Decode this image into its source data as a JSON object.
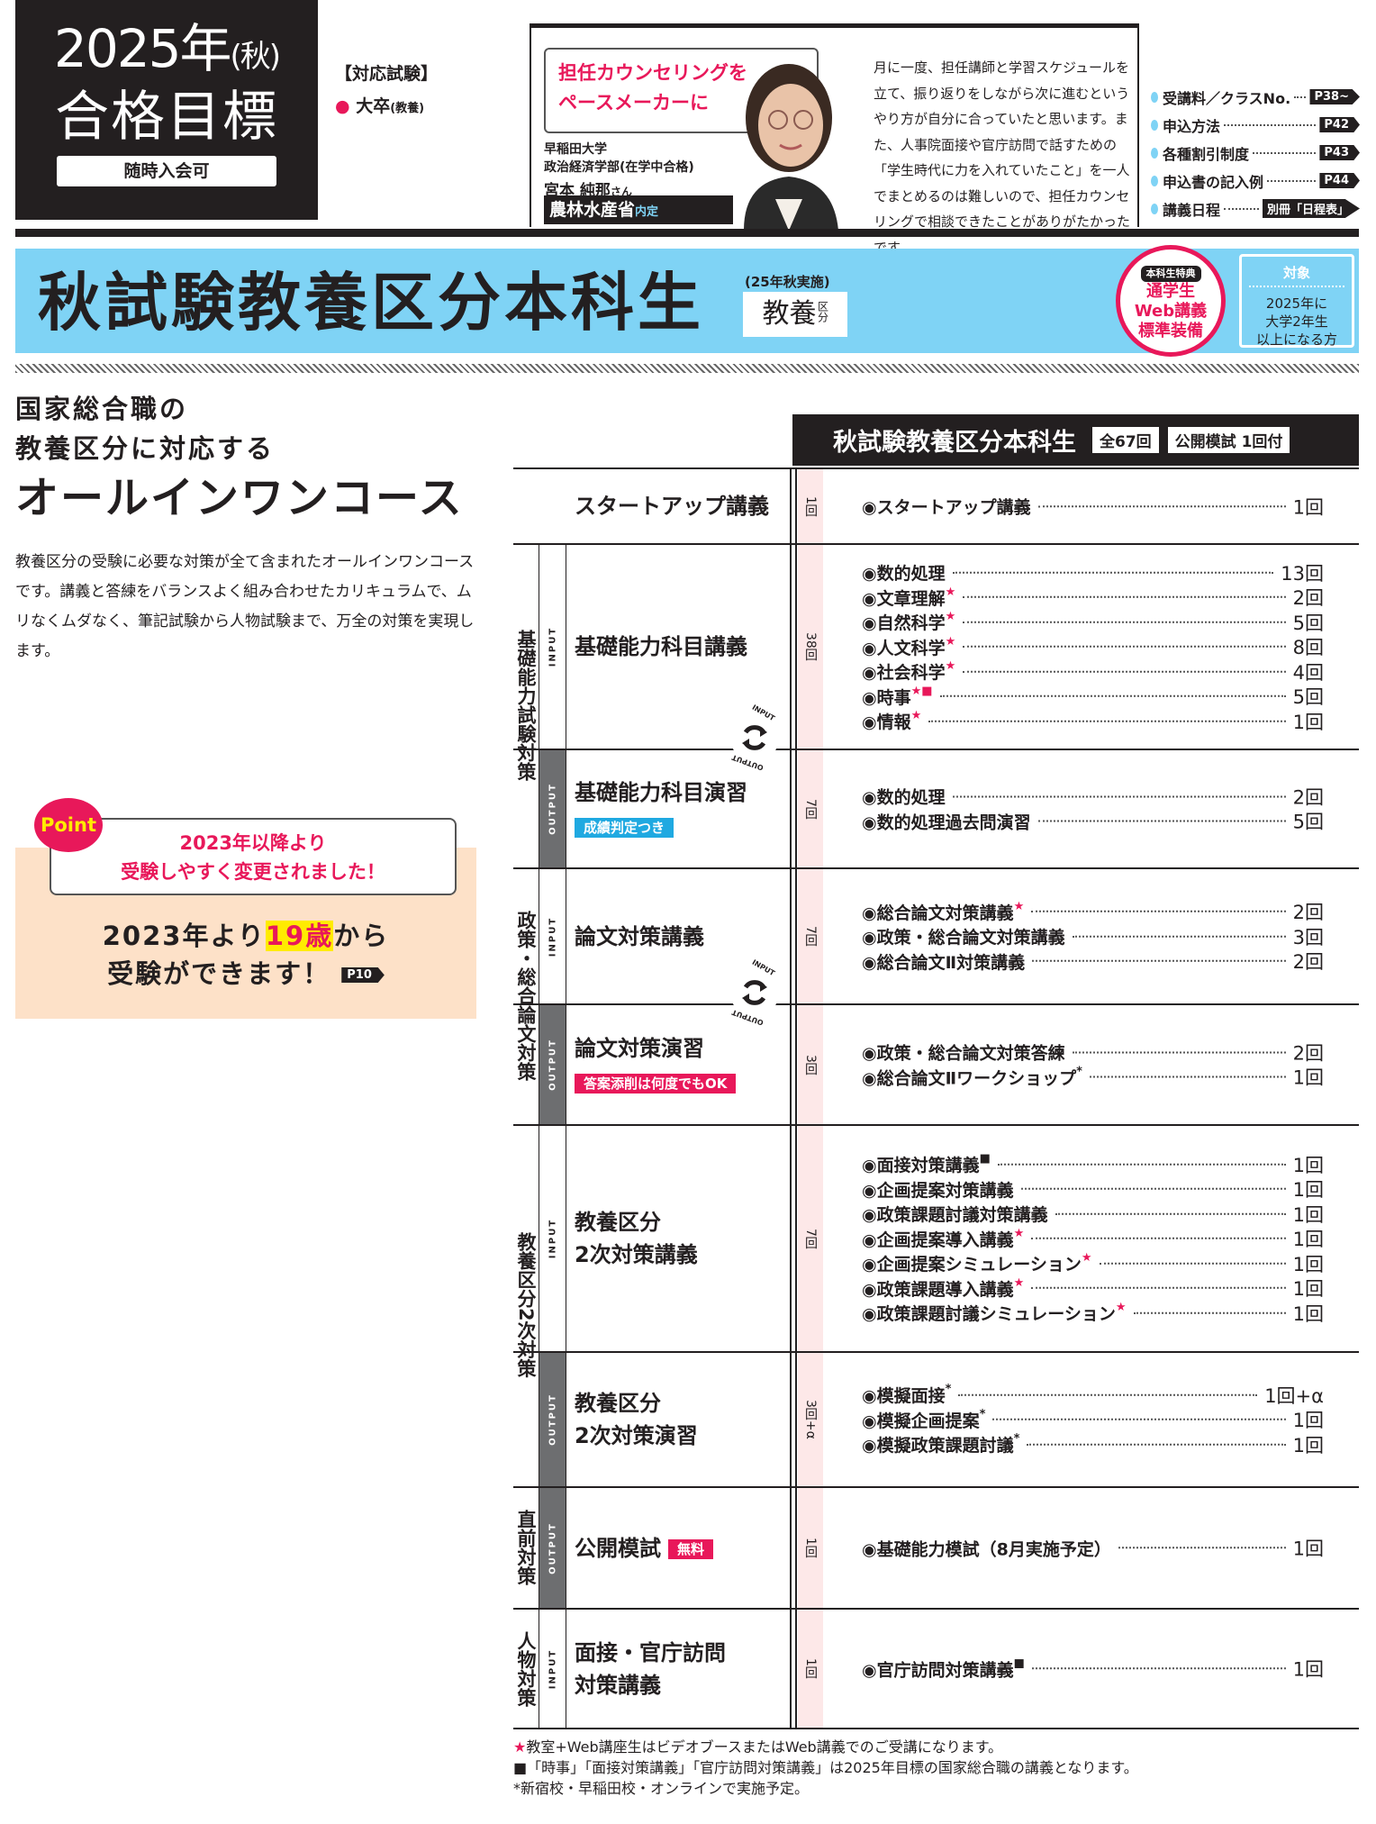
{
  "goal": {
    "year": "2025年",
    "season": "(秋)",
    "label": "合格目標",
    "note": "随時入会可"
  },
  "exam": {
    "heading": "【対応試験】",
    "item": "大卒",
    "item_sub": "(教養)"
  },
  "testimonial": {
    "bubble": [
      "担任カウンセリングを",
      "ペースメーカーに"
    ],
    "school": "早稲田大学",
    "faculty": "政治経済学部(在学中合格)",
    "name": "宮本 純那",
    "honorific": "さん",
    "ministry": "農林水産省",
    "ministry_tag": "内定",
    "text": "月に一度、担任講師と学習スケジュールを立て、振り返りをしながら次に進むというやり方が自分に合っていたと思います。また、人事院面接や官庁訪問で話すための「学生時代に力を入れていたこと」を一人でまとめるのは難しいので、担任カウンセリングで相談できたことがありがたかったです。"
  },
  "links": [
    {
      "label": "受講料／クラスNo.",
      "page": "P38~"
    },
    {
      "label": "申込方法",
      "page": "P42"
    },
    {
      "label": "各種割引制度",
      "page": "P43"
    },
    {
      "label": "申込書の記入例",
      "page": "P44"
    },
    {
      "label": "講義日程",
      "page": "別冊「日程表」"
    }
  ],
  "banner": {
    "title": "秋試験教養区分本科生",
    "sub": "(25年秋実施)",
    "kyoyo": "教養",
    "kubun": "区分",
    "badge_tag": "本科生特典",
    "badge_lines": [
      "通学生",
      "Web講義",
      "標準装備"
    ],
    "target_title": "対象",
    "target_lines": [
      "2025年に",
      "大学2年生",
      "以上になる方"
    ]
  },
  "lead": {
    "line1": "国家総合職の",
    "line2": "教養区分に対応する",
    "line3": "オールインワンコース",
    "desc": "教養区分の受験に必要な対策が全て含まれたオールインワンコースです。講義と答練をバランスよく組み合わせたカリキュラムで、ムリなくムダなく、筆記試験から人物試験まで、万全の対策を実現します。"
  },
  "point": {
    "tag": "Point",
    "bubble": [
      "2023年以降より",
      "受験しやすく変更されました！"
    ],
    "main_pre": "2023年より",
    "main_hl": "19歳",
    "main_post": "から",
    "main_line2": "受験ができます！",
    "page": "P10"
  },
  "table": {
    "title": "秋試験教養区分本科生",
    "total": "全67回",
    "mock": "公開模試 1回付",
    "groups": [
      "基礎能力試験対策",
      "政策・総合論文対策",
      "教養区分2次対策",
      "直前対策",
      "人物対策"
    ],
    "cycle_in": "INPUT",
    "cycle_out": "OUTPUT",
    "rows": [
      {
        "type": "",
        "name": [
          "スタートアップ講義"
        ],
        "count": "1回",
        "items": [
          {
            "l": "スタートアップ講義",
            "m": "",
            "v": "1回"
          }
        ]
      },
      {
        "type": "INPUT",
        "name": [
          "基礎能力科目講義"
        ],
        "count": "38回",
        "items": [
          {
            "l": "数的処理",
            "m": "",
            "v": "13回"
          },
          {
            "l": "文章理解",
            "m": "★",
            "v": "2回"
          },
          {
            "l": "自然科学",
            "m": "★",
            "v": "5回"
          },
          {
            "l": "人文科学",
            "m": "★",
            "v": "8回"
          },
          {
            "l": "社会科学",
            "m": "★",
            "v": "4回"
          },
          {
            "l": "時事",
            "m": "★■",
            "v": "5回"
          },
          {
            "l": "情報",
            "m": "★",
            "v": "1回"
          }
        ]
      },
      {
        "type": "OUTPUT",
        "name": [
          "基礎能力科目演習"
        ],
        "badge": "成績判定つき",
        "badge_color": "#1fa9e1",
        "count": "7回",
        "items": [
          {
            "l": "数的処理",
            "m": "",
            "v": "2回"
          },
          {
            "l": "数的処理過去問演習",
            "m": "",
            "v": "5回"
          }
        ]
      },
      {
        "type": "INPUT",
        "name": [
          "論文対策講義"
        ],
        "count": "7回",
        "items": [
          {
            "l": "総合論文対策講義",
            "m": "★",
            "v": "2回"
          },
          {
            "l": "政策・総合論文対策講義",
            "m": "",
            "v": "3回"
          },
          {
            "l": "総合論文Ⅱ対策講義",
            "m": "",
            "v": "2回"
          }
        ]
      },
      {
        "type": "OUTPUT",
        "name": [
          "論文対策演習"
        ],
        "badge": "答案添削は何度でもOK",
        "badge_color": "#e8185a",
        "count": "3回",
        "items": [
          {
            "l": "政策・総合論文対策答練",
            "m": "",
            "v": "2回"
          },
          {
            "l": "総合論文Ⅱワークショップ",
            "m": "*",
            "v": "1回"
          }
        ]
      },
      {
        "type": "INPUT",
        "name": [
          "教養区分",
          "2次対策講義"
        ],
        "count": "7回",
        "items": [
          {
            "l": "面接対策講義",
            "m": "■",
            "v": "1回"
          },
          {
            "l": "企画提案対策講義",
            "m": "",
            "v": "1回"
          },
          {
            "l": "政策課題討議対策講義",
            "m": "",
            "v": "1回"
          },
          {
            "l": "企画提案導入講義",
            "m": "★",
            "v": "1回"
          },
          {
            "l": "企画提案シミュレーション",
            "m": "★",
            "v": "1回"
          },
          {
            "l": "政策課題導入講義",
            "m": "★",
            "v": "1回"
          },
          {
            "l": "政策課題討議シミュレーション",
            "m": "★",
            "v": "1回"
          }
        ]
      },
      {
        "type": "OUTPUT",
        "name": [
          "教養区分",
          "2次対策演習"
        ],
        "count": "3回+α",
        "items": [
          {
            "l": "模擬面接",
            "m": "*",
            "v": "1回+α"
          },
          {
            "l": "模擬企画提案",
            "m": "*",
            "v": "1回"
          },
          {
            "l": "模擬政策課題討議",
            "m": "*",
            "v": "1回"
          }
        ]
      },
      {
        "type": "OUTPUT",
        "name": [
          "公開模試"
        ],
        "badge": "無料",
        "badge_color": "#e8185a",
        "inline_badge": true,
        "count": "1回",
        "items": [
          {
            "l": "基礎能力模試（8月実施予定）",
            "m": "",
            "v": "1回"
          }
        ]
      },
      {
        "type": "INPUT",
        "name": [
          "面接・官庁訪問",
          "対策講義"
        ],
        "count": "1回",
        "items": [
          {
            "l": "官庁訪問対策講義",
            "m": "■",
            "v": "1回"
          }
        ]
      }
    ]
  },
  "notes": [
    {
      "mark": "★",
      "text": "教室+Web講座生はビデオブースまたはWeb講義でのご受講になります。"
    },
    {
      "mark": "■",
      "text": "「時事」「面接対策講義」「官庁訪問対策講義」は2025年目標の国家総合職の講義となります。"
    },
    {
      "mark": "*",
      "text": "新宿校・早稲田校・オンラインで実施予定。"
    }
  ],
  "colors": {
    "accent_pink": "#e8185a",
    "banner_blue": "#7fd3f5",
    "point_peach": "#fde1c8",
    "dark": "#231f20"
  }
}
